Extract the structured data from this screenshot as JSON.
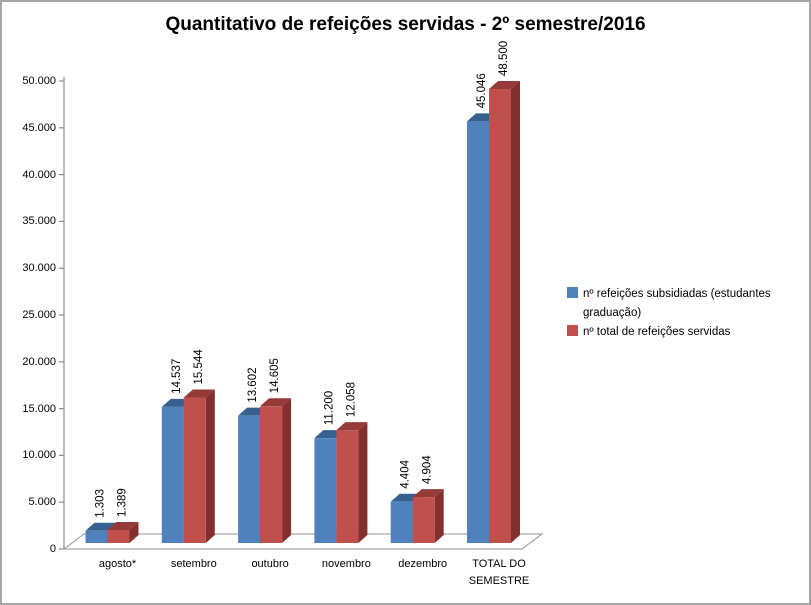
{
  "frame": {
    "background": "#ffffff",
    "border_color": "#a6a6a6",
    "axis_color": "#8c8c8c",
    "floor_stroke": "#a6a6a6",
    "text_color": "#000000"
  },
  "chart_data": {
    "type": "bar",
    "style": "3d-clustered-column",
    "title": "Quantitativo de refeições servidas - 2º semestre/2016",
    "categories": [
      "agosto*",
      "setembro",
      "outubro",
      "novembro",
      "dezembro",
      "TOTAL DO SEMESTRE"
    ],
    "series": [
      {
        "name": "nº refeições subsidiadas (estudantes graduação)",
        "color": "#4F81BD",
        "color_top": "#36618E",
        "color_side": "#2E5276",
        "values": [
          1303,
          14537,
          13602,
          11200,
          4404,
          45046
        ],
        "data_labels": [
          "1.303",
          "14.537",
          "13.602",
          "11.200",
          "4.404",
          "45.046"
        ]
      },
      {
        "name": "nº total de refeições servidas",
        "color": "#C0504D",
        "color_top": "#943B38",
        "color_side": "#822F2D",
        "values": [
          1389,
          15544,
          14605,
          12058,
          4904,
          48500
        ],
        "data_labels": [
          "1.389",
          "15.544",
          "14.605",
          "12.058",
          "4.904",
          "48.500"
        ]
      }
    ],
    "y_axis": {
      "min": 0,
      "max": 50000,
      "step": 5000,
      "tick_labels": [
        "0",
        "5.000",
        "10.000",
        "15.000",
        "20.000",
        "25.000",
        "30.000",
        "35.000",
        "40.000",
        "45.000",
        "50.000"
      ]
    },
    "legend": {
      "position": "right"
    },
    "grid": false
  }
}
